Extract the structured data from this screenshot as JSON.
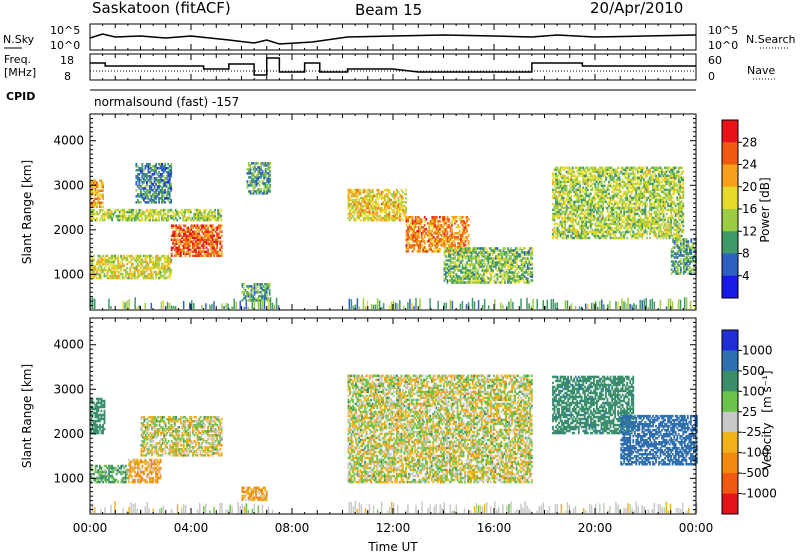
{
  "header": {
    "station": "Saskatoon (fitACF)",
    "beam": "Beam 15",
    "date": "20/Apr/2010",
    "cpid_label": "CPID",
    "cpid_text": "normalsound (fast) -157"
  },
  "top_panels": {
    "nsky": {
      "left_label": "N.Sky",
      "right_label": "N.Search",
      "left_ticks": [
        "10^5",
        "10^0"
      ],
      "right_ticks": [
        "10^5",
        "10^0"
      ]
    },
    "freq": {
      "left_label_line1": "Freq.",
      "left_label_line2": "[MHz]",
      "right_label": "Nave",
      "left_ticks": [
        "18",
        "8"
      ],
      "right_ticks": [
        "60",
        "0"
      ]
    }
  },
  "axes": {
    "xlabel": "Time UT",
    "x_ticks": [
      "00:00",
      "04:00",
      "08:00",
      "12:00",
      "16:00",
      "20:00",
      "00:00"
    ],
    "ylabel": "Slant Range [km]",
    "y_ticks": [
      "1000",
      "2000",
      "3000",
      "4000"
    ]
  },
  "power_colorbar": {
    "label": "Power [dB]",
    "ticks": [
      "28",
      "24",
      "20",
      "16",
      "12",
      "8",
      "4"
    ],
    "colors": [
      "#e8121b",
      "#f05a10",
      "#f7a01c",
      "#e7d92a",
      "#9ccc44",
      "#3f9a6a",
      "#2f5fc0",
      "#1a1ae6"
    ]
  },
  "velocity_colorbar": {
    "label": "Velocity",
    "unit": "[m s⁻¹]",
    "ticks": [
      "1000",
      "500",
      "100",
      "25",
      "-25",
      "-100",
      "-500",
      "-1000"
    ],
    "colors": [
      "#1f2fd6",
      "#2f6fb0",
      "#3a8f6a",
      "#6cc24a",
      "#c8c8c8",
      "#f2b21a",
      "#f28a10",
      "#ef5a10",
      "#e3121b"
    ]
  },
  "chart_data": {
    "type": "heatmap",
    "title": "Saskatoon (fitACF)",
    "xlabel": "Time UT",
    "ylabel": "Slant Range [km]",
    "x_range_hours": [
      0,
      24
    ],
    "y_range_km": [
      200,
      4600
    ],
    "panels": [
      {
        "name": "Power [dB]",
        "color_range": [
          0,
          30
        ],
        "echo_regions": [
          {
            "t0": 0.0,
            "t1": 0.5,
            "r0": 2500,
            "r1": 3100,
            "value": 20
          },
          {
            "t0": 0.0,
            "t1": 5.2,
            "r0": 2200,
            "r1": 2450,
            "value": 14
          },
          {
            "t0": 0.0,
            "t1": 3.2,
            "r0": 900,
            "r1": 1400,
            "value": 16
          },
          {
            "t0": 3.2,
            "t1": 5.2,
            "r0": 1400,
            "r1": 2100,
            "value": 24
          },
          {
            "t0": 1.8,
            "t1": 3.2,
            "r0": 2600,
            "r1": 3500,
            "value": 8
          },
          {
            "t0": 6.2,
            "t1": 7.1,
            "r0": 2800,
            "r1": 3500,
            "value": 10
          },
          {
            "t0": 6.0,
            "t1": 7.1,
            "r0": 400,
            "r1": 800,
            "value": 10
          },
          {
            "t0": 10.2,
            "t1": 12.5,
            "r0": 2200,
            "r1": 2900,
            "value": 18
          },
          {
            "t0": 12.5,
            "t1": 15.0,
            "r0": 1500,
            "r1": 2300,
            "value": 22
          },
          {
            "t0": 14.0,
            "t1": 17.5,
            "r0": 800,
            "r1": 1600,
            "value": 12
          },
          {
            "t0": 18.3,
            "t1": 23.5,
            "r0": 1800,
            "r1": 3400,
            "value": 14
          },
          {
            "t0": 23.0,
            "t1": 24.0,
            "r0": 1000,
            "r1": 1800,
            "value": 10
          }
        ]
      },
      {
        "name": "Velocity",
        "color_range": [
          -1000,
          1000
        ],
        "echo_regions": [
          {
            "t0": 0.0,
            "t1": 0.6,
            "r0": 2000,
            "r1": 2800,
            "value": 300
          },
          {
            "t0": 0.0,
            "t1": 1.5,
            "r0": 900,
            "r1": 1300,
            "value": 100
          },
          {
            "t0": 1.5,
            "t1": 2.8,
            "r0": 900,
            "r1": 1400,
            "value": -100
          },
          {
            "t0": 2.0,
            "t1": 5.2,
            "r0": 1500,
            "r1": 2400,
            "value": 0
          },
          {
            "t0": 6.0,
            "t1": 7.0,
            "r0": 500,
            "r1": 800,
            "value": -100
          },
          {
            "t0": 10.2,
            "t1": 17.5,
            "r0": 900,
            "r1": 3300,
            "value": 0
          },
          {
            "t0": 18.3,
            "t1": 21.5,
            "r0": 2000,
            "r1": 3300,
            "value": 400
          },
          {
            "t0": 21.0,
            "t1": 24.0,
            "r0": 1300,
            "r1": 2400,
            "value": 800
          }
        ]
      }
    ]
  }
}
